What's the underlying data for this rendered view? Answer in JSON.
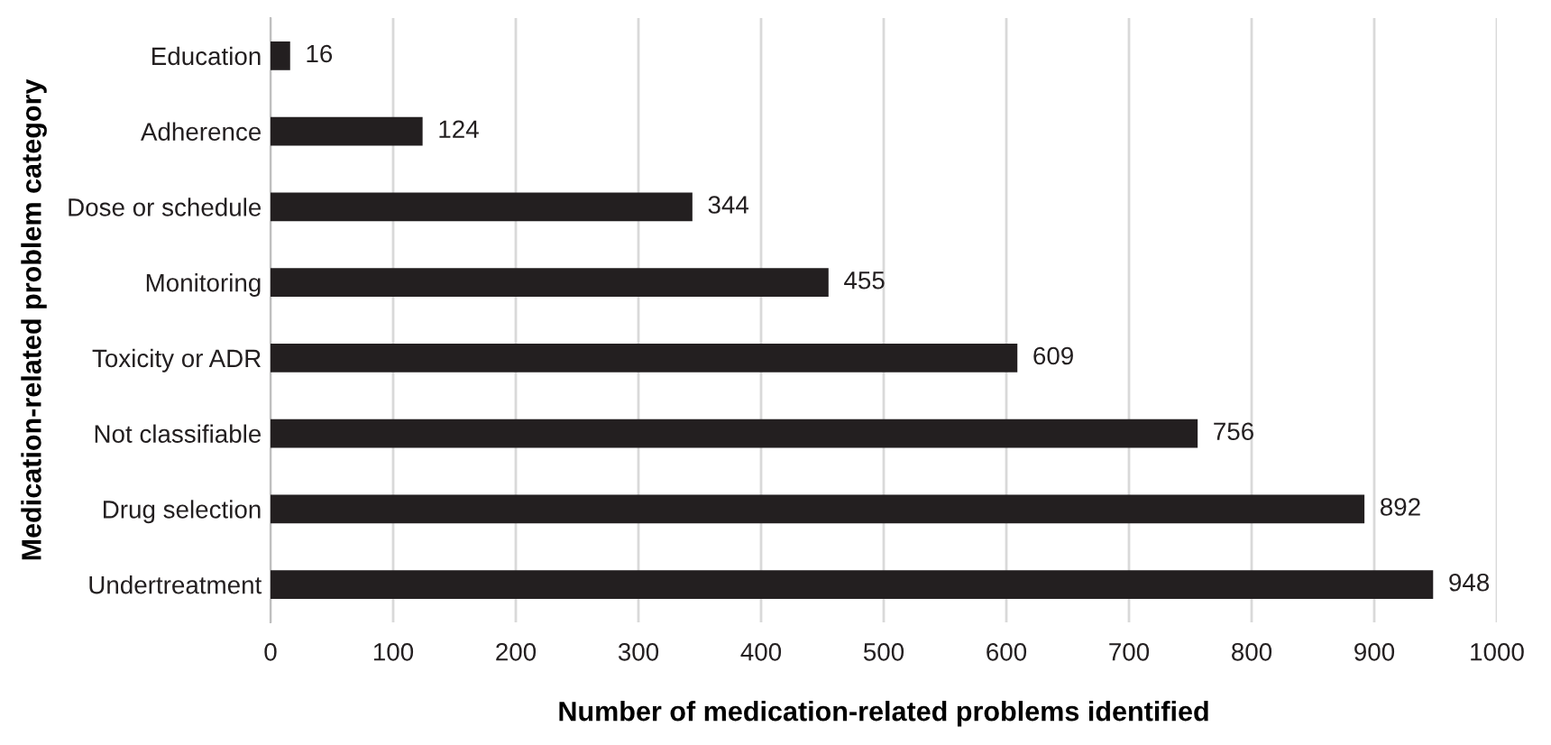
{
  "chart_data": {
    "type": "bar",
    "orientation": "horizontal",
    "xlabel": "Number of medication-related problems identified",
    "ylabel": "Medication-related problem category",
    "categories": [
      "Education",
      "Adherence",
      "Dose or schedule",
      "Monitoring",
      "Toxicity or ADR",
      "Not classifiable",
      "Drug selection",
      "Undertreatment"
    ],
    "values": [
      16,
      124,
      344,
      455,
      609,
      756,
      892,
      948
    ],
    "color": "#231f20",
    "xlim": [
      0,
      1000
    ],
    "xticks": [
      0,
      100,
      200,
      300,
      400,
      500,
      600,
      700,
      800,
      900,
      1000
    ],
    "grid": "x",
    "data_labels": true
  }
}
